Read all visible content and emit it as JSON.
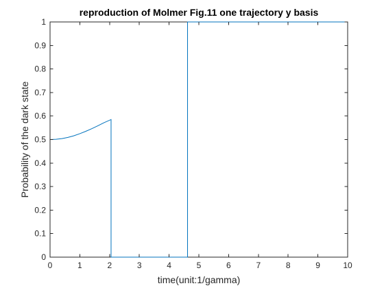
{
  "chart_data": {
    "type": "line",
    "title": "reproduction of Molmer Fig.11 one trajectory y basis",
    "xlabel": "time(unit:1/gamma)",
    "ylabel": "Probability of the dark state",
    "xlim": [
      0,
      10
    ],
    "ylim": [
      0,
      1
    ],
    "xticks": [
      "0",
      "1",
      "2",
      "3",
      "4",
      "5",
      "6",
      "7",
      "8",
      "9",
      "10"
    ],
    "yticks": [
      "0",
      "0.1",
      "0.2",
      "0.3",
      "0.4",
      "0.5",
      "0.6",
      "0.7",
      "0.8",
      "0.9",
      "1"
    ],
    "grid": false,
    "line_color": "#0072BD",
    "series": [
      {
        "points": [
          [
            0.0,
            0.5
          ],
          [
            0.2,
            0.501
          ],
          [
            0.4,
            0.504
          ],
          [
            0.6,
            0.509
          ],
          [
            0.8,
            0.516
          ],
          [
            1.0,
            0.525
          ],
          [
            1.2,
            0.535
          ],
          [
            1.4,
            0.546
          ],
          [
            1.6,
            0.558
          ],
          [
            1.8,
            0.571
          ],
          [
            2.05,
            0.585
          ],
          [
            2.05,
            0.0
          ],
          [
            4.62,
            0.0
          ],
          [
            4.62,
            1.0
          ],
          [
            10.0,
            1.0
          ]
        ]
      }
    ]
  }
}
